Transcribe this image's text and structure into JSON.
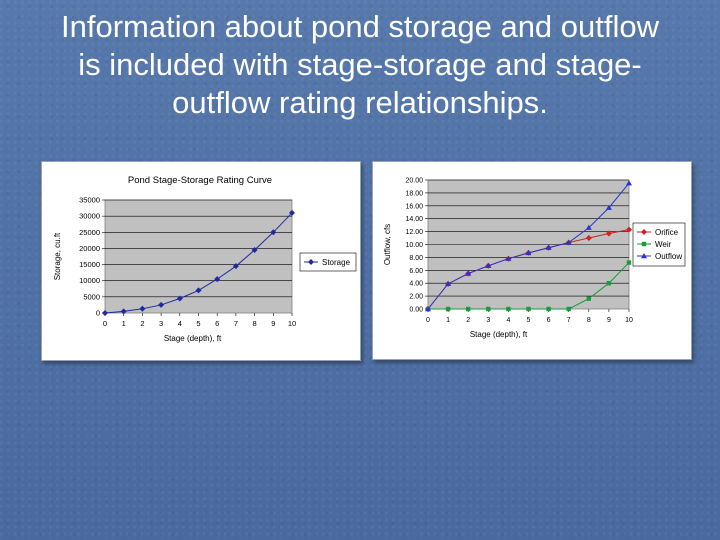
{
  "slide": {
    "title_lines": [
      "Information about pond storage and outflow",
      "is included with stage-storage and stage-",
      "outflow rating relationships."
    ]
  },
  "colors": {
    "background": "#4f6fa3",
    "plot_area": "#c0c0c0",
    "storage_series": "#1f2a9e",
    "orifice_series": "#d42020",
    "weir_series": "#1a9a3a",
    "outflow_series": "#2a34c8"
  },
  "chart_data": [
    {
      "type": "line",
      "title": "Pond Stage-Storage Rating Curve",
      "xlabel": "Stage (depth), ft",
      "ylabel": "Storage, cu.ft",
      "x": [
        0,
        1,
        2,
        3,
        4,
        5,
        6,
        7,
        8,
        9,
        10
      ],
      "x_tick_labels": [
        "0",
        "1",
        "2",
        "3",
        "4",
        "5",
        "6",
        "7",
        "8",
        "9",
        "10"
      ],
      "ylim": [
        0,
        35000
      ],
      "y_ticks": [
        0,
        5000,
        10000,
        15000,
        20000,
        25000,
        30000,
        35000
      ],
      "y_tick_labels": [
        "0",
        "5000",
        "10000",
        "15000",
        "20000",
        "25000",
        "30000",
        "35000"
      ],
      "series": [
        {
          "name": "Storage",
          "values": [
            0,
            500,
            1300,
            2500,
            4500,
            7000,
            10500,
            14500,
            19500,
            25000,
            31000
          ]
        }
      ],
      "grid": true,
      "legend": "right"
    },
    {
      "type": "line",
      "title": "",
      "xlabel": "Stage (depth), ft",
      "ylabel": "Outflow, cfs",
      "x": [
        0,
        1,
        2,
        3,
        4,
        5,
        6,
        7,
        8,
        9,
        10
      ],
      "x_tick_labels": [
        "0",
        "1",
        "2",
        "3",
        "4",
        "5",
        "6",
        "7",
        "8",
        "9",
        "10"
      ],
      "ylim": [
        0,
        20
      ],
      "y_ticks": [
        0,
        2,
        4,
        6,
        8,
        10,
        12,
        14,
        16,
        18,
        20
      ],
      "y_tick_labels": [
        "0.00",
        "2.00",
        "4.00",
        "6.00",
        "8.00",
        "10.00",
        "12.00",
        "14.00",
        "16.00",
        "18.00",
        "20.00"
      ],
      "series": [
        {
          "name": "Orifice",
          "values": [
            0,
            3.9,
            5.5,
            6.7,
            7.8,
            8.7,
            9.5,
            10.3,
            11.0,
            11.7,
            12.3
          ]
        },
        {
          "name": "Weir",
          "values": [
            0,
            0,
            0,
            0,
            0,
            0,
            0,
            0,
            1.6,
            4.0,
            7.2
          ]
        },
        {
          "name": "Outflow",
          "values": [
            0,
            3.9,
            5.5,
            6.7,
            7.8,
            8.7,
            9.5,
            10.3,
            12.6,
            15.7,
            19.5
          ]
        }
      ],
      "grid": true,
      "legend": "right"
    }
  ]
}
